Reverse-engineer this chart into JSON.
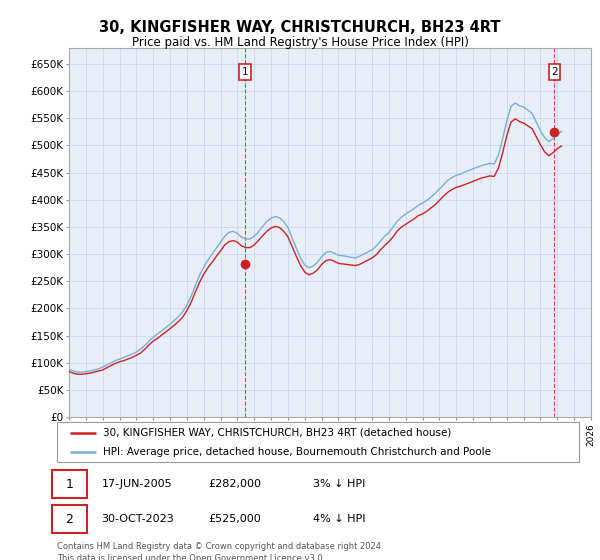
{
  "title": "30, KINGFISHER WAY, CHRISTCHURCH, BH23 4RT",
  "subtitle": "Price paid vs. HM Land Registry's House Price Index (HPI)",
  "legend_line1": "30, KINGFISHER WAY, CHRISTCHURCH, BH23 4RT (detached house)",
  "legend_line2": "HPI: Average price, detached house, Bournemouth Christchurch and Poole",
  "annotation1_date": "17-JUN-2005",
  "annotation1_price": "£282,000",
  "annotation1_hpi": "3% ↓ HPI",
  "annotation2_date": "30-OCT-2023",
  "annotation2_price": "£525,000",
  "annotation2_hpi": "4% ↓ HPI",
  "footer": "Contains HM Land Registry data © Crown copyright and database right 2024.\nThis data is licensed under the Open Government Licence v3.0.",
  "hpi_color": "#7aadd4",
  "price_color": "#cc2222",
  "grid_color": "#c8d8f0",
  "plot_bg_color": "#e8eef8",
  "hpi_years": [
    1995.0,
    1995.25,
    1995.5,
    1995.75,
    1996.0,
    1996.25,
    1996.5,
    1996.75,
    1997.0,
    1997.25,
    1997.5,
    1997.75,
    1998.0,
    1998.25,
    1998.5,
    1998.75,
    1999.0,
    1999.25,
    1999.5,
    1999.75,
    2000.0,
    2000.25,
    2000.5,
    2000.75,
    2001.0,
    2001.25,
    2001.5,
    2001.75,
    2002.0,
    2002.25,
    2002.5,
    2002.75,
    2003.0,
    2003.25,
    2003.5,
    2003.75,
    2004.0,
    2004.25,
    2004.5,
    2004.75,
    2005.0,
    2005.25,
    2005.5,
    2005.75,
    2006.0,
    2006.25,
    2006.5,
    2006.75,
    2007.0,
    2007.25,
    2007.5,
    2007.75,
    2008.0,
    2008.25,
    2008.5,
    2008.75,
    2009.0,
    2009.25,
    2009.5,
    2009.75,
    2010.0,
    2010.25,
    2010.5,
    2010.75,
    2011.0,
    2011.25,
    2011.5,
    2011.75,
    2012.0,
    2012.25,
    2012.5,
    2012.75,
    2013.0,
    2013.25,
    2013.5,
    2013.75,
    2014.0,
    2014.25,
    2014.5,
    2014.75,
    2015.0,
    2015.25,
    2015.5,
    2015.75,
    2016.0,
    2016.25,
    2016.5,
    2016.75,
    2017.0,
    2017.25,
    2017.5,
    2017.75,
    2018.0,
    2018.25,
    2018.5,
    2018.75,
    2019.0,
    2019.25,
    2019.5,
    2019.75,
    2020.0,
    2020.25,
    2020.5,
    2020.75,
    2021.0,
    2021.25,
    2021.5,
    2021.75,
    2022.0,
    2022.25,
    2022.5,
    2022.75,
    2023.0,
    2023.25,
    2023.5,
    2023.75,
    2024.0,
    2024.25
  ],
  "hpi_values": [
    88000,
    85000,
    83000,
    83000,
    84000,
    85000,
    87000,
    89000,
    92000,
    96000,
    100000,
    104000,
    107000,
    110000,
    113000,
    116000,
    120000,
    125000,
    132000,
    140000,
    147000,
    153000,
    159000,
    165000,
    171000,
    178000,
    185000,
    194000,
    206000,
    222000,
    242000,
    261000,
    276000,
    289000,
    300000,
    311000,
    322000,
    333000,
    340000,
    342000,
    338000,
    331000,
    328000,
    328000,
    333000,
    341000,
    351000,
    360000,
    366000,
    369000,
    367000,
    360000,
    349000,
    330000,
    311000,
    293000,
    280000,
    275000,
    278000,
    285000,
    295000,
    303000,
    305000,
    302000,
    298000,
    297000,
    296000,
    294000,
    293000,
    296000,
    300000,
    304000,
    308000,
    315000,
    324000,
    333000,
    340000,
    350000,
    361000,
    368000,
    374000,
    379000,
    384000,
    390000,
    394000,
    399000,
    405000,
    412000,
    420000,
    428000,
    436000,
    441000,
    445000,
    447000,
    451000,
    454000,
    457000,
    460000,
    463000,
    465000,
    467000,
    466000,
    482000,
    512000,
    545000,
    572000,
    578000,
    573000,
    571000,
    565000,
    559000,
    543000,
    527000,
    514000,
    507000,
    513000,
    520000,
    526000
  ],
  "red_years": [
    1995.0,
    1995.25,
    1995.5,
    1995.75,
    1996.0,
    1996.25,
    1996.5,
    1996.75,
    1997.0,
    1997.25,
    1997.5,
    1997.75,
    1998.0,
    1998.25,
    1998.5,
    1998.75,
    1999.0,
    1999.25,
    1999.5,
    1999.75,
    2000.0,
    2000.25,
    2000.5,
    2000.75,
    2001.0,
    2001.25,
    2001.5,
    2001.75,
    2002.0,
    2002.25,
    2002.5,
    2002.75,
    2003.0,
    2003.25,
    2003.5,
    2003.75,
    2004.0,
    2004.25,
    2004.5,
    2004.75,
    2005.0,
    2005.25,
    2005.5,
    2005.75,
    2006.0,
    2006.25,
    2006.5,
    2006.75,
    2007.0,
    2007.25,
    2007.5,
    2007.75,
    2008.0,
    2008.25,
    2008.5,
    2008.75,
    2009.0,
    2009.25,
    2009.5,
    2009.75,
    2010.0,
    2010.25,
    2010.5,
    2010.75,
    2011.0,
    2011.25,
    2011.5,
    2011.75,
    2012.0,
    2012.25,
    2012.5,
    2012.75,
    2013.0,
    2013.25,
    2013.5,
    2013.75,
    2014.0,
    2014.25,
    2014.5,
    2014.75,
    2015.0,
    2015.25,
    2015.5,
    2015.75,
    2016.0,
    2016.25,
    2016.5,
    2016.75,
    2017.0,
    2017.25,
    2017.5,
    2017.75,
    2018.0,
    2018.25,
    2018.5,
    2018.75,
    2019.0,
    2019.25,
    2019.5,
    2019.75,
    2020.0,
    2020.25,
    2020.5,
    2020.75,
    2021.0,
    2021.25,
    2021.5,
    2021.75,
    2022.0,
    2022.25,
    2022.5,
    2022.75,
    2023.0,
    2023.25,
    2023.5,
    2023.75,
    2024.0,
    2024.25
  ],
  "red_values": [
    84000,
    81000,
    79000,
    79000,
    80000,
    81000,
    83000,
    85000,
    87000,
    91000,
    95000,
    99000,
    102000,
    104000,
    107000,
    110000,
    114000,
    118000,
    125000,
    133000,
    140000,
    145000,
    151000,
    157000,
    163000,
    169000,
    176000,
    184000,
    196000,
    211000,
    230000,
    248000,
    263000,
    275000,
    285000,
    296000,
    306000,
    317000,
    323000,
    325000,
    322000,
    315000,
    312000,
    312000,
    317000,
    325000,
    334000,
    342000,
    348000,
    351000,
    349000,
    342000,
    332000,
    314000,
    296000,
    279000,
    267000,
    262000,
    265000,
    271000,
    281000,
    288000,
    290000,
    287000,
    283000,
    282000,
    281000,
    280000,
    279000,
    281000,
    285000,
    289000,
    293000,
    299000,
    308000,
    316000,
    323000,
    332000,
    343000,
    350000,
    355000,
    360000,
    365000,
    371000,
    374000,
    379000,
    385000,
    391000,
    399000,
    407000,
    414000,
    419000,
    423000,
    425000,
    428000,
    431000,
    434000,
    437000,
    440000,
    442000,
    444000,
    443000,
    458000,
    486000,
    518000,
    543000,
    549000,
    544000,
    541000,
    536000,
    531000,
    516000,
    501000,
    488000,
    481000,
    487000,
    494000,
    499000
  ],
  "ann1_x": 2005.46,
  "ann1_y": 282000,
  "ann2_x": 2023.83,
  "ann2_y": 525000,
  "xmin": 1995,
  "xmax": 2026,
  "ylim": [
    0,
    680000
  ],
  "yticks": [
    0,
    50000,
    100000,
    150000,
    200000,
    250000,
    300000,
    350000,
    400000,
    450000,
    500000,
    550000,
    600000,
    650000
  ],
  "ytick_labels": [
    "£0",
    "£50K",
    "£100K",
    "£150K",
    "£200K",
    "£250K",
    "£300K",
    "£350K",
    "£400K",
    "£450K",
    "£500K",
    "£550K",
    "£600K",
    "£650K"
  ]
}
